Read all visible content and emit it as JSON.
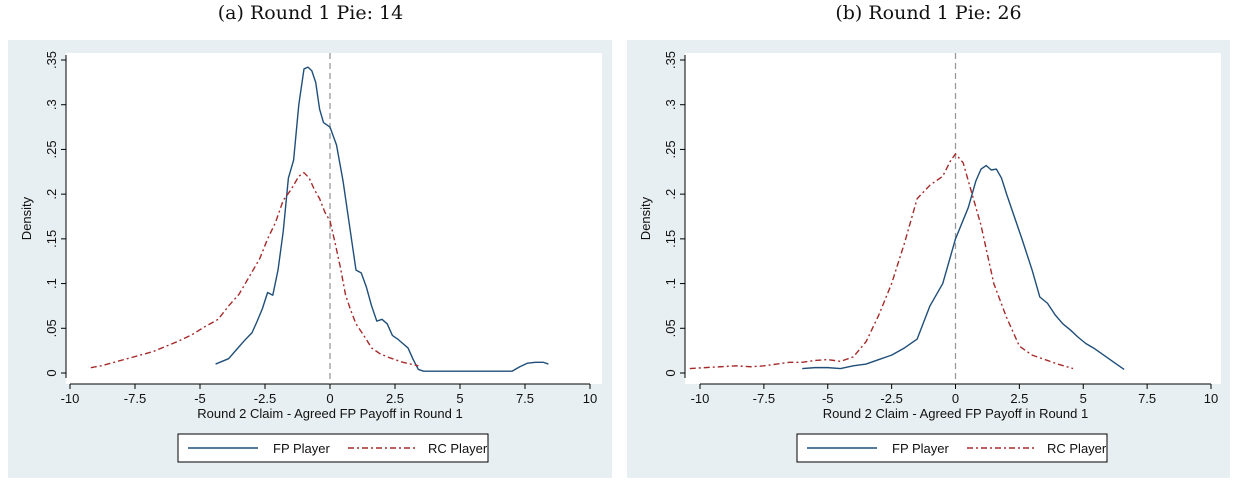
{
  "captions": [
    "(a) Round 1 Pie: 14",
    "(b) Round 1 Pie: 26"
  ],
  "colors": {
    "panel_bg": "#e8eff2",
    "plot_bg": "#ffffff",
    "fp": "#1f4e79",
    "rc": "#a52a2a",
    "ref_line": "#999999"
  },
  "chart_data": [
    {
      "type": "line",
      "title": "(a) Round 1 Pie: 14",
      "xlabel": "Round 2 Claim - Agreed FP Payoff in Round 1",
      "ylabel": "Density",
      "xlim": [
        -10,
        10
      ],
      "ylim": [
        0,
        0.35
      ],
      "xticks": [
        -10,
        -7.5,
        -5,
        -2.5,
        0,
        2.5,
        5,
        7.5,
        10
      ],
      "xtick_labels": [
        "-10",
        "-7.5",
        "-5",
        "-2.5",
        "0",
        "2.5",
        "5",
        "7.5",
        "10"
      ],
      "yticks": [
        0,
        0.05,
        0.1,
        0.15,
        0.2,
        0.25,
        0.3,
        0.35
      ],
      "ytick_labels": [
        "0",
        ".05",
        ".1",
        ".15",
        ".2",
        ".25",
        ".3",
        ".35"
      ],
      "reference_line_x": 0,
      "legend": "bottom",
      "grid": false,
      "series": [
        {
          "name": "FP Player",
          "style": "solid",
          "x": [
            -4.4,
            -3.9,
            -3.6,
            -3.3,
            -3.0,
            -2.8,
            -2.6,
            -2.4,
            -2.2,
            -2.0,
            -1.8,
            -1.6,
            -1.4,
            -1.2,
            -1.0,
            -0.85,
            -0.7,
            -0.55,
            -0.4,
            -0.25,
            0,
            0.25,
            0.5,
            0.75,
            1.0,
            1.2,
            1.4,
            1.6,
            1.8,
            2.0,
            2.2,
            2.4,
            2.6,
            2.8,
            3.0,
            3.2,
            3.4,
            3.6,
            3.8,
            4.0,
            4.5,
            5.0,
            5.5,
            6.0,
            6.5,
            7.0,
            7.3,
            7.6,
            7.9,
            8.2,
            8.4
          ],
          "y": [
            0.01,
            0.016,
            0.026,
            0.036,
            0.045,
            0.058,
            0.072,
            0.09,
            0.087,
            0.115,
            0.158,
            0.218,
            0.238,
            0.3,
            0.34,
            0.342,
            0.338,
            0.325,
            0.295,
            0.28,
            0.275,
            0.255,
            0.215,
            0.165,
            0.115,
            0.112,
            0.096,
            0.075,
            0.058,
            0.06,
            0.055,
            0.042,
            0.038,
            0.033,
            0.028,
            0.015,
            0.004,
            0.002,
            0.002,
            0.002,
            0.002,
            0.002,
            0.002,
            0.002,
            0.002,
            0.002,
            0.007,
            0.011,
            0.012,
            0.012,
            0.01
          ]
        },
        {
          "name": "RC Player",
          "style": "dashdot",
          "x": [
            -9.2,
            -8.8,
            -8.3,
            -7.8,
            -7.3,
            -6.8,
            -6.3,
            -5.8,
            -5.3,
            -4.8,
            -4.3,
            -3.9,
            -3.5,
            -3.1,
            -2.7,
            -2.4,
            -2.1,
            -1.8,
            -1.5,
            -1.2,
            -1.0,
            -0.8,
            -0.6,
            -0.4,
            -0.2,
            0,
            0.2,
            0.4,
            0.6,
            0.8,
            1.0,
            1.3,
            1.6,
            1.9,
            2.2,
            2.5,
            2.8,
            3.1,
            3.4
          ],
          "y": [
            0.006,
            0.008,
            0.012,
            0.016,
            0.02,
            0.024,
            0.03,
            0.036,
            0.043,
            0.052,
            0.06,
            0.075,
            0.088,
            0.108,
            0.128,
            0.15,
            0.168,
            0.193,
            0.205,
            0.22,
            0.224,
            0.218,
            0.205,
            0.195,
            0.18,
            0.17,
            0.145,
            0.118,
            0.087,
            0.07,
            0.055,
            0.042,
            0.028,
            0.022,
            0.018,
            0.015,
            0.012,
            0.01,
            0.008
          ]
        }
      ]
    },
    {
      "type": "line",
      "title": "(b) Round 1 Pie: 26",
      "xlabel": "Round 2 Claim - Agreed FP Payoff in Round 1",
      "ylabel": "Density",
      "xlim": [
        -10,
        10
      ],
      "ylim": [
        0,
        0.35
      ],
      "xticks": [
        -10,
        -7.5,
        -5,
        -2.5,
        0,
        2.5,
        5,
        7.5,
        10
      ],
      "xtick_labels": [
        "-10",
        "-7.5",
        "-5",
        "-2.5",
        "0",
        "2.5",
        "5",
        "7.5",
        "10"
      ],
      "yticks": [
        0,
        0.05,
        0.1,
        0.15,
        0.2,
        0.25,
        0.3,
        0.35
      ],
      "ytick_labels": [
        "0",
        ".05",
        ".1",
        ".15",
        ".2",
        ".25",
        ".3",
        ".35"
      ],
      "reference_line_x": 0,
      "legend": "bottom",
      "grid": false,
      "series": [
        {
          "name": "FP Player",
          "style": "solid",
          "x": [
            -6.0,
            -5.5,
            -5.0,
            -4.5,
            -4.0,
            -3.5,
            -3.0,
            -2.5,
            -2.0,
            -1.5,
            -1.0,
            -0.5,
            0,
            0.5,
            0.8,
            1.0,
            1.2,
            1.4,
            1.6,
            1.8,
            2.0,
            2.3,
            2.6,
            3.0,
            3.3,
            3.6,
            3.9,
            4.2,
            4.5,
            4.8,
            5.1,
            5.4,
            5.8,
            6.2,
            6.6
          ],
          "y": [
            0.005,
            0.006,
            0.006,
            0.005,
            0.008,
            0.01,
            0.015,
            0.02,
            0.028,
            0.038,
            0.075,
            0.1,
            0.15,
            0.185,
            0.215,
            0.228,
            0.232,
            0.227,
            0.228,
            0.218,
            0.2,
            0.175,
            0.15,
            0.115,
            0.085,
            0.078,
            0.065,
            0.055,
            0.048,
            0.04,
            0.033,
            0.028,
            0.02,
            0.012,
            0.004
          ]
        },
        {
          "name": "RC Player",
          "style": "dashdot",
          "x": [
            -10.4,
            -9.8,
            -9.2,
            -8.6,
            -8.0,
            -7.5,
            -7.0,
            -6.5,
            -6.0,
            -5.5,
            -5.0,
            -4.5,
            -4.0,
            -3.5,
            -3.0,
            -2.5,
            -2.0,
            -1.5,
            -1.0,
            -0.5,
            -0.2,
            0,
            0.3,
            0.6,
            1.0,
            1.5,
            2.0,
            2.5,
            3.0,
            3.5,
            4.0,
            4.6
          ],
          "y": [
            0.005,
            0.006,
            0.007,
            0.008,
            0.007,
            0.008,
            0.01,
            0.012,
            0.012,
            0.014,
            0.015,
            0.013,
            0.018,
            0.035,
            0.065,
            0.1,
            0.145,
            0.195,
            0.21,
            0.22,
            0.237,
            0.245,
            0.235,
            0.205,
            0.165,
            0.1,
            0.062,
            0.03,
            0.02,
            0.015,
            0.01,
            0.005
          ]
        }
      ]
    }
  ]
}
